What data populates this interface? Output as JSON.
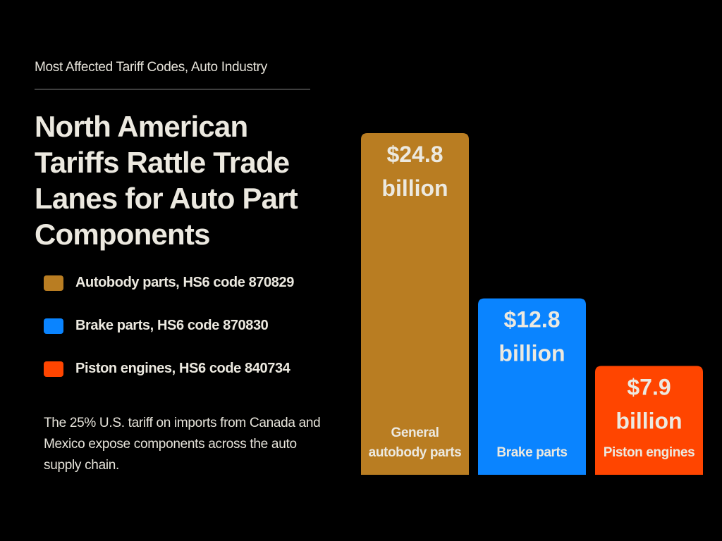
{
  "header": {
    "eyebrow": "Most Affected Tariff Codes, Auto Industry",
    "title": "North American Tariffs Rattle Trade Lanes for Auto Part Components"
  },
  "legend": [
    {
      "label": "Autobody parts, HS6 code 870829",
      "color": "#b97d22"
    },
    {
      "label": "Brake parts, HS6 code 870830",
      "color": "#0a84ff"
    },
    {
      "label": "Piston engines, HS6 code 840734",
      "color": "#ff4500"
    }
  ],
  "note": "The 25% U.S. tariff on imports from Canada and Mexico expose components across the auto supply chain.",
  "chart_data": {
    "type": "bar",
    "categories": [
      "General autobody parts",
      "Brake parts",
      "Piston engines"
    ],
    "values": [
      24.8,
      12.8,
      7.9
    ],
    "value_labels": [
      [
        "$24.8",
        "billion"
      ],
      [
        "$12.8",
        "billion"
      ],
      [
        "$7.9",
        "billion"
      ]
    ],
    "category_labels": [
      [
        "General",
        "autobody parts"
      ],
      [
        "Brake parts"
      ],
      [
        "Piston engines"
      ]
    ],
    "colors": [
      "#b97d22",
      "#0a84ff",
      "#ff4500"
    ],
    "legend_position": "left",
    "grid": false,
    "axes_visible": false
  }
}
